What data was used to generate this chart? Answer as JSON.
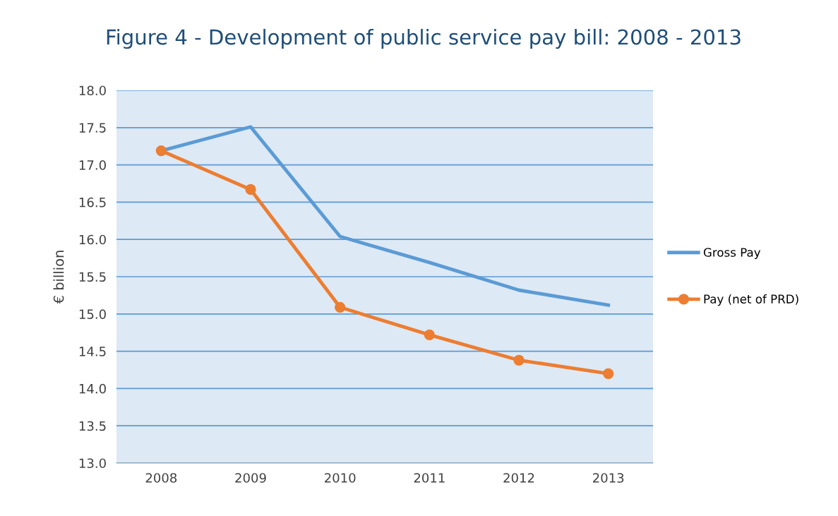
{
  "chart_data": {
    "type": "line",
    "title": "Figure 4 - Development of public service pay bill: 2008 - 2013",
    "ylabel": "€ billion",
    "categories": [
      "2008",
      "2009",
      "2010",
      "2011",
      "2012",
      "2013"
    ],
    "series": [
      {
        "name": "Gross Pay",
        "color": "#5b9bd5",
        "marker": "none",
        "values": [
          17.19,
          17.51,
          16.04,
          15.69,
          15.32,
          15.12
        ]
      },
      {
        "name": "Pay (net of PRD)",
        "color": "#ed7d31",
        "marker": "circle",
        "values": [
          17.19,
          16.67,
          15.09,
          14.72,
          14.38,
          14.2
        ]
      }
    ],
    "ylim": [
      13,
      18
    ],
    "yticks": [
      {
        "value": 13,
        "label": "13.0"
      },
      13.5,
      {
        "value": 14,
        "label": "14.0"
      },
      14.5,
      {
        "value": 15,
        "label": "15.0"
      },
      15.5,
      {
        "value": 16,
        "label": "16.0"
      },
      16.5,
      {
        "value": 17,
        "label": "17.0"
      },
      17.5,
      {
        "value": 18,
        "label": "18.0"
      }
    ],
    "grid": "y",
    "legend": "right"
  }
}
